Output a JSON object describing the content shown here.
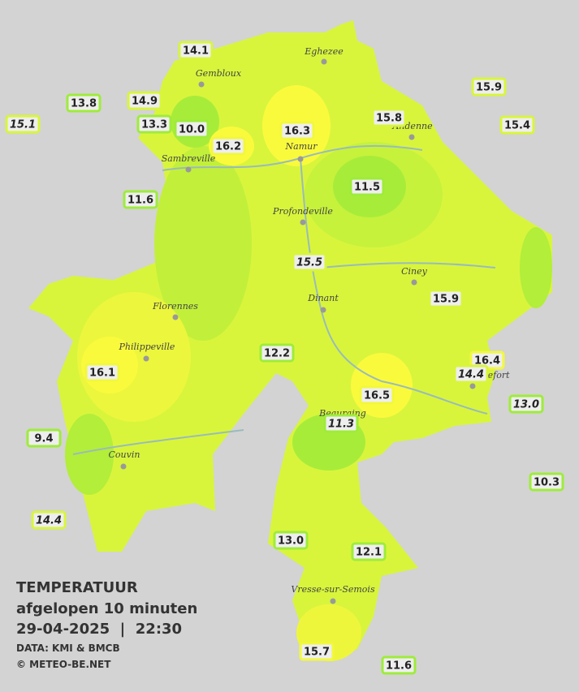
{
  "stations": [
    "14.1",
    "13.8",
    "15.1",
    "14.9",
    "13.3",
    "10.0",
    "16.2",
    "16.3",
    "15.8",
    "15.9",
    "15.4",
    "11.6",
    "11.5",
    "15.5",
    "15.9",
    "12.2",
    "16.1",
    "16.4",
    "14.4",
    "13.0",
    "16.5",
    "11.3",
    "9.4",
    "10.3",
    "14.4",
    "13.0",
    "12.1",
    "15.7",
    "11.6"
  ],
  "towns": [
    "Eghezee",
    "Gembloux",
    "Andenne",
    "Namur",
    "Sambreville",
    "Profondeville",
    "Ciney",
    "Dinant",
    "Florennes",
    "Philippeville",
    "Rochefort",
    "Beauraing",
    "Couvin",
    "Vresse-sur-Semois"
  ],
  "legend": {
    "title": "TEMPERATUUR",
    "subtitle": "afgelopen 10 minuten",
    "datetime": "29-04-2025  |  22:30",
    "source": "DATA: KMI & BMCB",
    "copyright": "© METEO-BE.NET"
  }
}
